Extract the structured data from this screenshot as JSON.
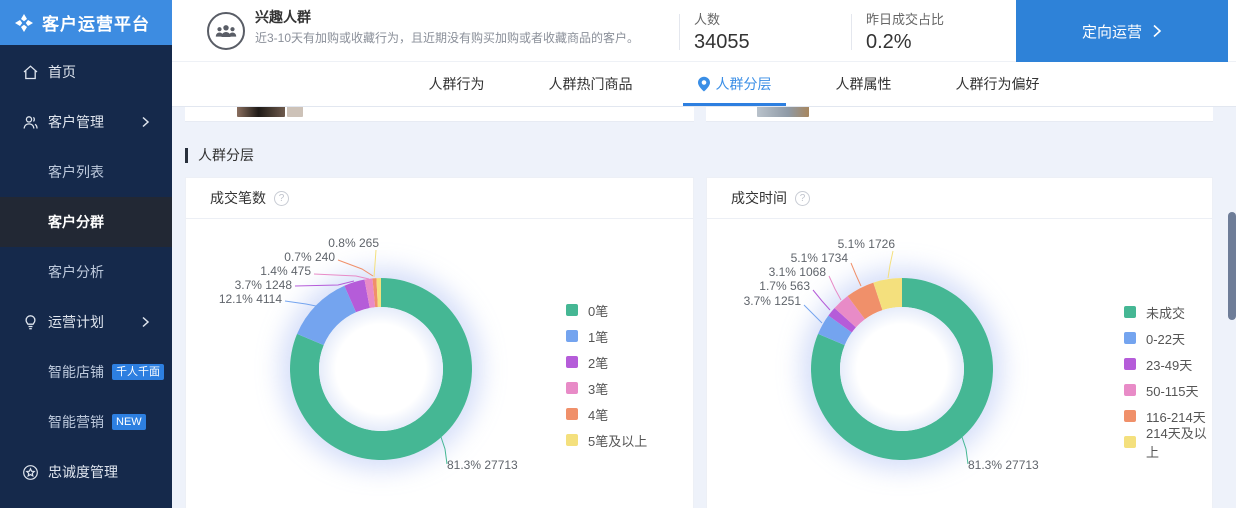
{
  "app": {
    "title": "客户运营平台"
  },
  "sidebar": {
    "items": [
      {
        "label": "首页"
      },
      {
        "label": "客户管理"
      },
      {
        "label": "客户列表"
      },
      {
        "label": "客户分群"
      },
      {
        "label": "客户分析"
      },
      {
        "label": "运营计划"
      },
      {
        "label": "智能店铺",
        "badge": "千人千面"
      },
      {
        "label": "智能营销",
        "badge": "NEW"
      },
      {
        "label": "忠诚度管理"
      }
    ]
  },
  "header": {
    "audience_name": "兴趣人群",
    "audience_desc": "近3-10天有加购或收藏行为，且近期没有购买加购或者收藏商品的客户。",
    "stats": [
      {
        "label": "人数",
        "value": "34055"
      },
      {
        "label": "昨日成交占比",
        "value": "0.2%"
      }
    ],
    "cta_label": "定向运营"
  },
  "tabs": [
    {
      "label": "人群行为"
    },
    {
      "label": "人群热门商品"
    },
    {
      "label": "人群分层",
      "active": true
    },
    {
      "label": "人群属性"
    },
    {
      "label": "人群行为偏好"
    }
  ],
  "section_title": "人群分层",
  "colors": {
    "accent_blue": "#3a8ee6",
    "button_blue": "#2e82d8",
    "sidebar_navy": "#15294b",
    "logo_blue": "#3d8ce1"
  },
  "chart_data": [
    {
      "type": "pie",
      "title": "成交笔数",
      "legend_position": "right",
      "series": [
        {
          "label": "0笔",
          "value": 27713,
          "percent": 81.3,
          "color": "#45b794"
        },
        {
          "label": "1笔",
          "value": 4114,
          "percent": 12.1,
          "color": "#74a4ef"
        },
        {
          "label": "2笔",
          "value": 1248,
          "percent": 3.7,
          "color": "#b55cd9"
        },
        {
          "label": "3笔",
          "value": 475,
          "percent": 1.4,
          "color": "#e88bc7"
        },
        {
          "label": "4笔",
          "value": 240,
          "percent": 0.7,
          "color": "#f0906a"
        },
        {
          "label": "5笔及以上",
          "value": 265,
          "percent": 0.8,
          "color": "#f4e07d"
        }
      ]
    },
    {
      "type": "pie",
      "title": "成交时间",
      "legend_position": "right",
      "series": [
        {
          "label": "未成交",
          "value": 27713,
          "percent": 81.3,
          "color": "#45b794"
        },
        {
          "label": "0-22天",
          "value": 1251,
          "percent": 3.7,
          "color": "#74a4ef"
        },
        {
          "label": "23-49天",
          "value": 563,
          "percent": 1.7,
          "color": "#b55cd9"
        },
        {
          "label": "50-115天",
          "value": 1068,
          "percent": 3.1,
          "color": "#e88bc7"
        },
        {
          "label": "116-214天",
          "value": 1734,
          "percent": 5.1,
          "color": "#f0906a"
        },
        {
          "label": "214天及以上",
          "value": 1726,
          "percent": 5.1,
          "color": "#f4e07d"
        }
      ]
    }
  ]
}
